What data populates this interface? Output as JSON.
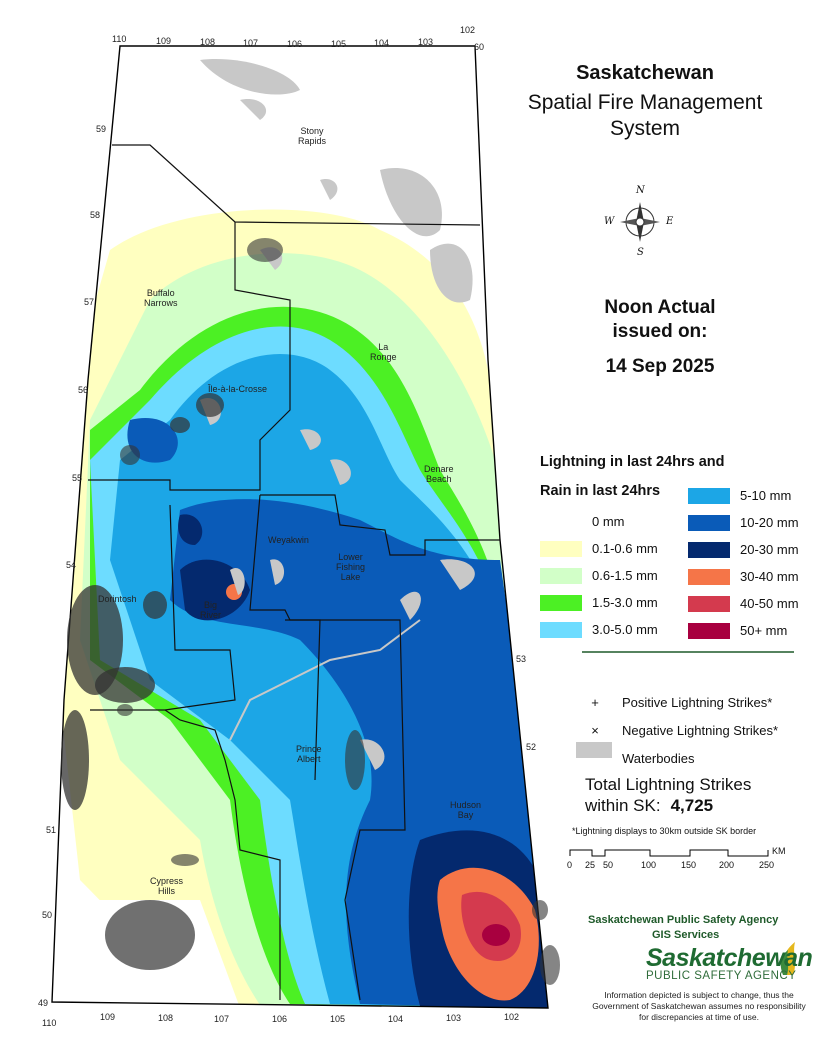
{
  "title": {
    "line1": "Saskatchewan",
    "line2": "Spatial Fire Management",
    "line3": "System"
  },
  "issued": {
    "line1": "Noon Actual",
    "line2": "issued on:",
    "date": "14 Sep 2025"
  },
  "legend": {
    "heading1": "Lightning in last 24hrs and",
    "heading2": "Rain in last 24hrs",
    "rain_classes_left": [
      {
        "label": "0 mm",
        "color": "#ffffff"
      },
      {
        "label": "0.1-0.6 mm",
        "color": "#ffffc0"
      },
      {
        "label": "0.6-1.5 mm",
        "color": "#d2ffc8"
      },
      {
        "label": "1.5-3.0 mm",
        "color": "#4cf024"
      },
      {
        "label": "3.0-5.0 mm",
        "color": "#6ddcff"
      }
    ],
    "rain_classes_right": [
      {
        "label": "5-10 mm",
        "color": "#1ca6e6"
      },
      {
        "label": "10-20 mm",
        "color": "#0a5bb8"
      },
      {
        "label": "20-30 mm",
        "color": "#04296e"
      },
      {
        "label": "30-40 mm",
        "color": "#f57548"
      },
      {
        "label": "40-50 mm",
        "color": "#d43a4e"
      },
      {
        "label": "50+ mm",
        "color": "#a8003f"
      }
    ],
    "symbols": [
      {
        "glyph": "+",
        "label": "Positive Lightning Strikes*"
      },
      {
        "glyph": "×",
        "label": "Negative Lightning Strikes*"
      },
      {
        "glyph": "",
        "label": "Waterbodies",
        "color": "#c8c8c8"
      }
    ]
  },
  "totals": {
    "line1": "Total Lightning Strikes",
    "line2": "within SK:",
    "count": "4,725",
    "note": "*Lightning displays to 30km outside SK border"
  },
  "scale_bar": {
    "unit": "KM",
    "ticks": [
      "0",
      "25",
      "50",
      "100",
      "150",
      "200",
      "250"
    ]
  },
  "agency": {
    "line1": "Saskatchewan Public Safety Agency",
    "line2": "GIS  Services",
    "logo_main": "Saskatchewan",
    "logo_sub": "PUBLIC SAFETY AGENCY",
    "disclaimer": "Information depicted is subject to change, thus the Government of Saskatchewan assumes no responsibility for discrepancies at time of use."
  },
  "map": {
    "places": [
      {
        "name": "Stony\nRapids"
      },
      {
        "name": "Buffalo\nNarrows"
      },
      {
        "name": "La\nRonge"
      },
      {
        "name": "Île-à-la-Crosse"
      },
      {
        "name": "Denare\nBeach"
      },
      {
        "name": "Weyakwin"
      },
      {
        "name": "Lower\nFishing\nLake"
      },
      {
        "name": "Dorintosh"
      },
      {
        "name": "Big\nRiver"
      },
      {
        "name": "Prince\nAlbert"
      },
      {
        "name": "Hudson\nBay"
      },
      {
        "name": "Cypress\nHills"
      }
    ],
    "longitudes_top": [
      "110",
      "109",
      "108",
      "107",
      "106",
      "105",
      "104",
      "103",
      "102"
    ],
    "longitudes_bottom": [
      "110",
      "109",
      "108",
      "107",
      "106",
      "105",
      "104",
      "103",
      "102"
    ],
    "latitudes": [
      "60",
      "59",
      "58",
      "57",
      "56",
      "55",
      "54",
      "53",
      "52",
      "51",
      "50",
      "49"
    ],
    "compass": {
      "n": "N",
      "e": "E",
      "s": "S",
      "w": "W"
    }
  }
}
